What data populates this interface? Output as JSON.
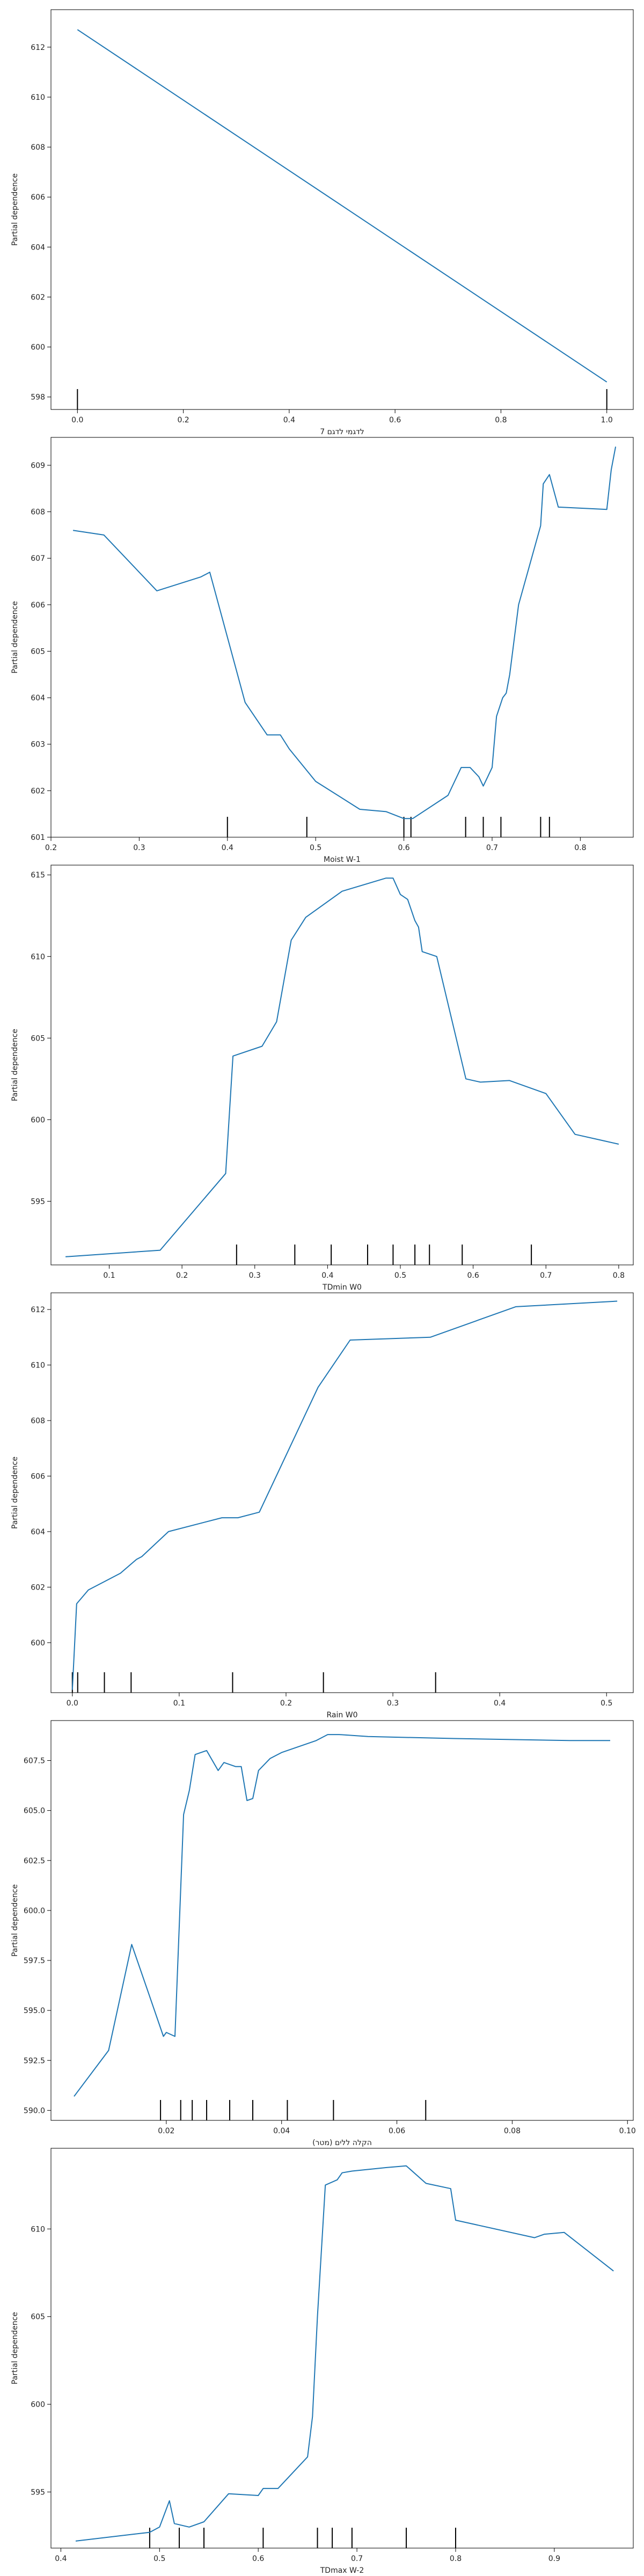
{
  "chart_data": [
    {
      "type": "line",
      "xlabel": "7 לדגמי לדגם",
      "ylabel": "Partial dependence",
      "xlim": [
        -0.05,
        1.05
      ],
      "ylim": [
        597.5,
        613.5
      ],
      "xticks": [
        0.0,
        0.2,
        0.4,
        0.6,
        0.8,
        1.0
      ],
      "yticks": [
        598,
        600,
        602,
        604,
        606,
        608,
        610,
        612
      ],
      "x": [
        0.0,
        1.0
      ],
      "y": [
        612.7,
        598.6
      ],
      "rug": [
        0.0,
        1.0
      ]
    },
    {
      "type": "line",
      "xlabel": "Moist W-1",
      "ylabel": "Partial dependence",
      "xlim": [
        0.2,
        0.86
      ],
      "ylim": [
        601,
        609.6
      ],
      "xticks": [
        0.2,
        0.3,
        0.4,
        0.5,
        0.6,
        0.7,
        0.8
      ],
      "yticks": [
        601,
        602,
        603,
        604,
        605,
        606,
        607,
        608,
        609
      ],
      "x": [
        0.225,
        0.26,
        0.32,
        0.37,
        0.38,
        0.42,
        0.445,
        0.46,
        0.47,
        0.5,
        0.55,
        0.58,
        0.6,
        0.61,
        0.65,
        0.665,
        0.675,
        0.685,
        0.69,
        0.695,
        0.7,
        0.705,
        0.712,
        0.716,
        0.72,
        0.73,
        0.755,
        0.758,
        0.765,
        0.775,
        0.83,
        0.835,
        0.84
      ],
      "y": [
        607.6,
        607.5,
        606.3,
        606.6,
        606.7,
        603.9,
        603.2,
        603.2,
        602.9,
        602.2,
        601.6,
        601.55,
        601.4,
        601.4,
        601.9,
        602.5,
        602.5,
        602.3,
        602.1,
        602.3,
        602.5,
        603.6,
        604.0,
        604.1,
        604.5,
        606.0,
        607.7,
        608.6,
        608.8,
        608.1,
        608.05,
        608.9,
        609.4
      ],
      "rug": [
        0.4,
        0.49,
        0.6,
        0.608,
        0.67,
        0.69,
        0.71,
        0.755,
        0.765
      ]
    },
    {
      "type": "line",
      "xlabel": "TDmin W0",
      "ylabel": "Partial dependence",
      "xlim": [
        0.02,
        0.82
      ],
      "ylim": [
        591.1,
        615.6
      ],
      "xticks": [
        0.1,
        0.2,
        0.3,
        0.4,
        0.5,
        0.6,
        0.7,
        0.8
      ],
      "yticks": [
        595,
        600,
        605,
        610,
        615
      ],
      "x": [
        0.04,
        0.17,
        0.26,
        0.27,
        0.31,
        0.33,
        0.35,
        0.37,
        0.42,
        0.48,
        0.49,
        0.5,
        0.51,
        0.52,
        0.525,
        0.53,
        0.55,
        0.59,
        0.61,
        0.65,
        0.7,
        0.74,
        0.78,
        0.8
      ],
      "y": [
        591.6,
        592.0,
        596.7,
        603.9,
        604.5,
        606.0,
        611.0,
        612.4,
        614.0,
        614.8,
        614.8,
        613.8,
        613.5,
        612.2,
        611.8,
        610.3,
        610.0,
        602.5,
        602.3,
        602.4,
        601.6,
        599.1,
        598.7,
        598.5
      ],
      "rug": [
        0.275,
        0.355,
        0.405,
        0.455,
        0.49,
        0.52,
        0.54,
        0.585,
        0.68
      ]
    },
    {
      "type": "line",
      "xlabel": "Rain W0",
      "ylabel": "Partial dependence",
      "xlim": [
        -0.02,
        0.525
      ],
      "ylim": [
        598.2,
        612.6
      ],
      "xticks": [
        0.0,
        0.1,
        0.2,
        0.3,
        0.4,
        0.5
      ],
      "yticks": [
        600,
        602,
        604,
        606,
        608,
        610,
        612
      ],
      "x": [
        0.0,
        0.004,
        0.015,
        0.03,
        0.045,
        0.06,
        0.065,
        0.09,
        0.14,
        0.155,
        0.175,
        0.23,
        0.26,
        0.335,
        0.415,
        0.51
      ],
      "y": [
        598.3,
        601.4,
        601.9,
        602.2,
        602.5,
        603.0,
        603.1,
        604.0,
        604.5,
        604.5,
        604.7,
        609.2,
        610.9,
        611.0,
        612.1,
        612.3
      ],
      "rug": [
        0.0,
        0.005,
        0.03,
        0.055,
        0.15,
        0.235,
        0.34
      ]
    },
    {
      "type": "line",
      "xlabel": "(מטר) הקלה ללים",
      "ylabel": "Partial dependence",
      "xlim": [
        0.0,
        0.101
      ],
      "ylim": [
        589.5,
        609.5
      ],
      "xticks": [
        0.02,
        0.04,
        0.06,
        0.08,
        0.1
      ],
      "yticks": [
        590.0,
        592.5,
        595.0,
        597.5,
        600.0,
        602.5,
        605.0,
        607.5
      ],
      "x": [
        0.004,
        0.01,
        0.014,
        0.017,
        0.0195,
        0.02,
        0.0215,
        0.023,
        0.024,
        0.025,
        0.027,
        0.029,
        0.03,
        0.032,
        0.033,
        0.034,
        0.035,
        0.036,
        0.038,
        0.04,
        0.046,
        0.048,
        0.05,
        0.055,
        0.07,
        0.09,
        0.097
      ],
      "y": [
        590.7,
        593.0,
        598.3,
        595.8,
        593.7,
        593.9,
        593.7,
        604.8,
        606.0,
        607.8,
        608.0,
        607.0,
        607.4,
        607.2,
        607.2,
        605.5,
        605.6,
        607.0,
        607.6,
        607.9,
        608.5,
        608.8,
        608.8,
        608.7,
        608.6,
        608.5,
        608.5
      ],
      "rug": [
        0.019,
        0.0225,
        0.0245,
        0.027,
        0.031,
        0.035,
        0.041,
        0.049,
        0.065
      ]
    },
    {
      "type": "line",
      "xlabel": "TDmax W-2",
      "ylabel": "Partial dependence",
      "xlim": [
        0.39,
        0.98
      ],
      "ylim": [
        591.8,
        614.6
      ],
      "xticks": [
        0.4,
        0.5,
        0.6,
        0.7,
        0.8,
        0.9
      ],
      "yticks": [
        595,
        600,
        605,
        610
      ],
      "x": [
        0.415,
        0.49,
        0.5,
        0.51,
        0.515,
        0.53,
        0.545,
        0.57,
        0.6,
        0.605,
        0.62,
        0.65,
        0.655,
        0.66,
        0.668,
        0.68,
        0.685,
        0.695,
        0.73,
        0.75,
        0.77,
        0.795,
        0.8,
        0.88,
        0.89,
        0.91,
        0.96
      ],
      "y": [
        592.2,
        592.7,
        593.0,
        594.5,
        593.2,
        593.0,
        593.3,
        594.9,
        594.8,
        595.2,
        595.2,
        597.0,
        599.3,
        605.0,
        612.5,
        612.8,
        613.2,
        613.3,
        613.5,
        613.6,
        612.6,
        612.3,
        610.5,
        609.5,
        609.7,
        609.8,
        607.6
      ],
      "rug": [
        0.49,
        0.52,
        0.545,
        0.605,
        0.66,
        0.675,
        0.695,
        0.75,
        0.8
      ]
    }
  ]
}
